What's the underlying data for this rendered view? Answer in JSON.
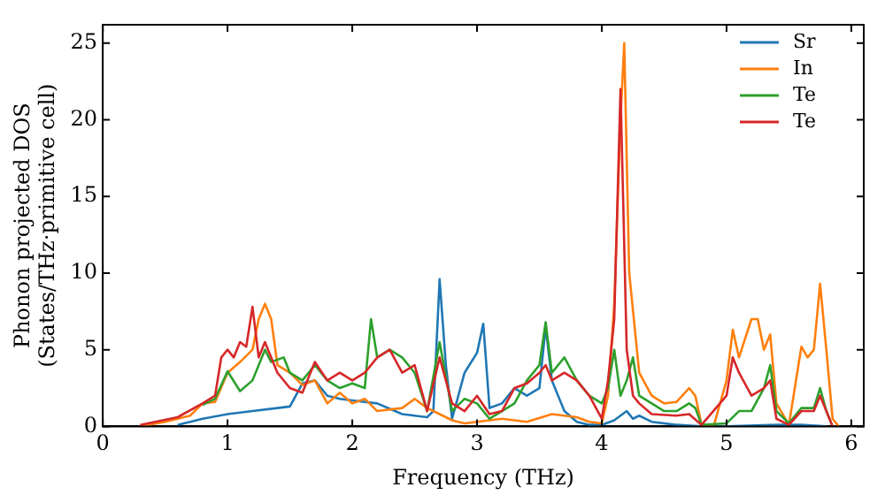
{
  "chart_data": {
    "type": "line",
    "xlabel": "Frequency (THz)",
    "ylabel": "Phonon projected DOS\n(States/THz·primitive cell)",
    "xlim": [
      0,
      6.1
    ],
    "ylim": [
      0,
      26.2
    ],
    "xticks": [
      0,
      1,
      2,
      3,
      4,
      5,
      6
    ],
    "yticks": [
      0,
      5,
      10,
      15,
      20,
      25
    ],
    "legend": "top right",
    "grid": false,
    "marker": "none",
    "line_style": "solid",
    "series": [
      {
        "name": "Sr",
        "color": "#1f77b4",
        "x": [
          0.6,
          0.8,
          1.0,
          1.2,
          1.4,
          1.5,
          1.6,
          1.7,
          1.8,
          1.9,
          2.0,
          2.2,
          2.4,
          2.6,
          2.65,
          2.7,
          2.75,
          2.8,
          2.9,
          3.0,
          3.05,
          3.1,
          3.2,
          3.3,
          3.4,
          3.5,
          3.55,
          3.6,
          3.7,
          3.8,
          3.9,
          4.0,
          4.1,
          4.2,
          4.25,
          4.3,
          4.4,
          4.6,
          4.8,
          5.0,
          5.4,
          5.6,
          5.8
        ],
        "values": [
          0.1,
          0.5,
          0.8,
          1.0,
          1.2,
          1.3,
          2.8,
          3.0,
          2.0,
          1.8,
          1.7,
          1.5,
          0.8,
          0.6,
          1.0,
          9.6,
          4,
          0.5,
          3.5,
          4.8,
          6.7,
          1.2,
          1.5,
          2.5,
          2.0,
          2.5,
          6.5,
          3.0,
          1.0,
          0.3,
          0.1,
          0.1,
          0.4,
          1.0,
          0.5,
          0.7,
          0.3,
          0.1,
          0,
          0,
          0.1,
          0.1,
          0
        ]
      },
      {
        "name": "In",
        "color": "#ff7f0e",
        "x": [
          0.3,
          0.5,
          0.7,
          0.8,
          0.9,
          1.0,
          1.1,
          1.2,
          1.25,
          1.3,
          1.35,
          1.4,
          1.5,
          1.6,
          1.7,
          1.8,
          1.9,
          2.0,
          2.1,
          2.2,
          2.4,
          2.5,
          2.6,
          2.7,
          2.8,
          2.9,
          3.0,
          3.2,
          3.4,
          3.6,
          3.8,
          3.9,
          4.0,
          4.05,
          4.1,
          4.15,
          4.18,
          4.22,
          4.3,
          4.4,
          4.5,
          4.6,
          4.7,
          4.75,
          4.8,
          4.9,
          5.0,
          5.05,
          5.1,
          5.2,
          5.25,
          5.3,
          5.35,
          5.4,
          5.5,
          5.6,
          5.65,
          5.7,
          5.75,
          5.8,
          5.85,
          5.9
        ],
        "values": [
          0,
          0.3,
          0.7,
          1.5,
          1.6,
          3.5,
          4.2,
          5.0,
          7.0,
          8.0,
          7.0,
          4.0,
          3.5,
          2.7,
          3.0,
          1.5,
          2.2,
          1.5,
          1.8,
          1.0,
          1.2,
          1.8,
          1.2,
          0.8,
          0.4,
          0.2,
          0.3,
          0.5,
          0.3,
          0.8,
          0.6,
          0.3,
          0.2,
          2,
          8,
          20,
          25,
          10,
          3.5,
          2.0,
          1.5,
          1.6,
          2.5,
          2.0,
          0.1,
          0.1,
          3,
          6.3,
          4.5,
          7,
          7,
          5,
          6,
          1.5,
          0.1,
          5.2,
          4.5,
          5,
          9.3,
          5,
          0.5,
          0
        ]
      },
      {
        "name": "Te",
        "color": "#2ca02c",
        "x": [
          0.8,
          0.9,
          1.0,
          1.1,
          1.2,
          1.3,
          1.35,
          1.45,
          1.5,
          1.6,
          1.7,
          1.8,
          1.9,
          2.0,
          2.1,
          2.15,
          2.2,
          2.3,
          2.4,
          2.5,
          2.6,
          2.7,
          2.8,
          2.9,
          3.0,
          3.1,
          3.2,
          3.3,
          3.4,
          3.5,
          3.55,
          3.6,
          3.7,
          3.8,
          3.9,
          4.0,
          4.05,
          4.1,
          4.15,
          4.2,
          4.25,
          4.3,
          4.4,
          4.5,
          4.6,
          4.7,
          4.75,
          4.8,
          5.0,
          5.1,
          5.2,
          5.3,
          5.35,
          5.4,
          5.5,
          5.6,
          5.7,
          5.75,
          5.8,
          5.85
        ],
        "values": [
          1.4,
          1.8,
          3.6,
          2.3,
          3.0,
          5.0,
          4.2,
          4.5,
          3.5,
          3.0,
          4.0,
          3.0,
          2.5,
          2.8,
          2.5,
          7.0,
          4.5,
          5.0,
          4.5,
          3.5,
          1.0,
          5.5,
          1.0,
          1.8,
          1.5,
          0.5,
          1.0,
          1.5,
          3.0,
          4.0,
          6.8,
          3.5,
          4.5,
          3.0,
          2.0,
          1.5,
          2.5,
          5.0,
          2.0,
          3.0,
          4.5,
          2.0,
          1.5,
          1.0,
          1.0,
          1.5,
          1.2,
          0.1,
          0.2,
          1.0,
          1.0,
          2.5,
          4,
          1,
          0.2,
          1.2,
          1.2,
          2.5,
          1.0,
          0
        ]
      },
      {
        "name": "Te",
        "color": "#d62728",
        "x": [
          0.3,
          0.6,
          0.8,
          0.9,
          0.95,
          1.0,
          1.05,
          1.1,
          1.15,
          1.2,
          1.25,
          1.3,
          1.4,
          1.5,
          1.6,
          1.7,
          1.8,
          1.9,
          2.0,
          2.1,
          2.2,
          2.3,
          2.4,
          2.5,
          2.6,
          2.7,
          2.8,
          2.9,
          3.0,
          3.1,
          3.2,
          3.3,
          3.4,
          3.5,
          3.55,
          3.6,
          3.7,
          3.8,
          3.9,
          4.0,
          4.05,
          4.1,
          4.15,
          4.2,
          4.25,
          4.3,
          4.4,
          4.6,
          4.7,
          4.8,
          5.0,
          5.05,
          5.1,
          5.2,
          5.3,
          5.35,
          5.4,
          5.5,
          5.6,
          5.7,
          5.75,
          5.8,
          5.85
        ],
        "values": [
          0.1,
          0.6,
          1.5,
          2.0,
          4.5,
          5.0,
          4.5,
          5.5,
          5.2,
          7.8,
          4.5,
          5.5,
          3.5,
          2.5,
          2.2,
          4.2,
          3.0,
          3.5,
          3.0,
          3.5,
          4.5,
          5.0,
          3.5,
          4.0,
          1.0,
          4.5,
          1.5,
          1.0,
          2.0,
          0.8,
          1.0,
          2.5,
          2.8,
          3.5,
          4.0,
          3.0,
          3.5,
          3.0,
          2.0,
          0.5,
          3.0,
          7,
          22,
          5,
          2,
          1.5,
          0.8,
          0.7,
          0.8,
          0.1,
          2,
          4.5,
          3.5,
          2.0,
          2.5,
          3,
          0.5,
          0.1,
          1.0,
          1.0,
          2.0,
          1,
          0
        ]
      }
    ]
  }
}
